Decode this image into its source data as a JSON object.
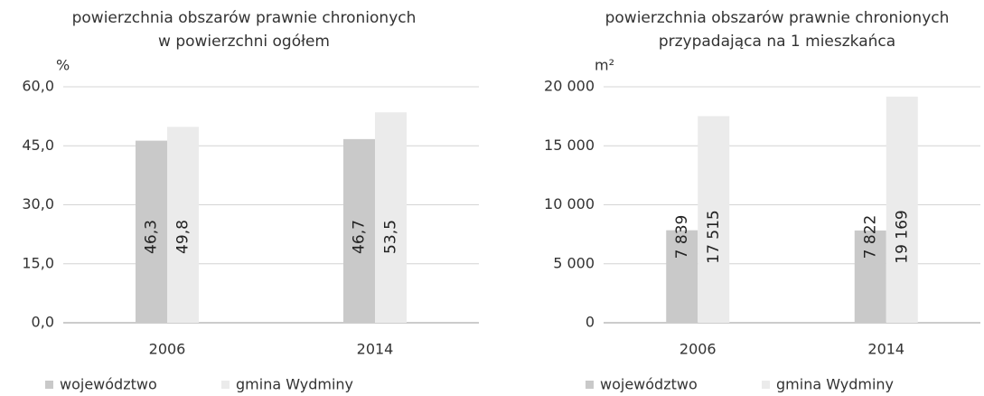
{
  "chart_data": [
    {
      "type": "bar",
      "title": [
        "powierzchnia obszarów prawnie chronionych",
        "w powierzchni ogółem"
      ],
      "ylabel": "%",
      "categories": [
        "2006",
        "2014"
      ],
      "series": [
        {
          "name": "województwo",
          "color": "#c9c9c9",
          "values": [
            46.3,
            46.7
          ],
          "value_labels": [
            "46,3",
            "46,7"
          ]
        },
        {
          "name": "gmina Wydminy",
          "color": "#ebebeb",
          "values": [
            49.8,
            53.5
          ],
          "value_labels": [
            "49,8",
            "53,5"
          ]
        }
      ],
      "ylim": [
        0,
        60
      ],
      "yticks": [
        {
          "value": 0,
          "label": "0,0"
        },
        {
          "value": 15,
          "label": "15,0"
        },
        {
          "value": 30,
          "label": "30,0"
        },
        {
          "value": 45,
          "label": "45,0"
        },
        {
          "value": 60,
          "label": "60,0"
        }
      ],
      "grid": true,
      "legend": "bottom"
    },
    {
      "type": "bar",
      "title": [
        "powierzchnia obszarów prawnie chronionych",
        "przypadająca na 1 mieszkańca"
      ],
      "ylabel": "m²",
      "categories": [
        "2006",
        "2014"
      ],
      "series": [
        {
          "name": "województwo",
          "color": "#c9c9c9",
          "values": [
            7839,
            7822
          ],
          "value_labels": [
            "7 839",
            "7 822"
          ]
        },
        {
          "name": "gmina Wydminy",
          "color": "#ebebeb",
          "values": [
            17515,
            19169
          ],
          "value_labels": [
            "17 515",
            "19 169"
          ]
        }
      ],
      "ylim": [
        0,
        20000
      ],
      "yticks": [
        0,
        {
          "value": 5000,
          "label": "5 000"
        },
        {
          "value": 10000,
          "label": "10 000"
        },
        {
          "value": 15000,
          "label": "15 000"
        },
        {
          "value": 20000,
          "label": "20 000"
        }
      ],
      "grid": true,
      "legend": "bottom"
    }
  ]
}
